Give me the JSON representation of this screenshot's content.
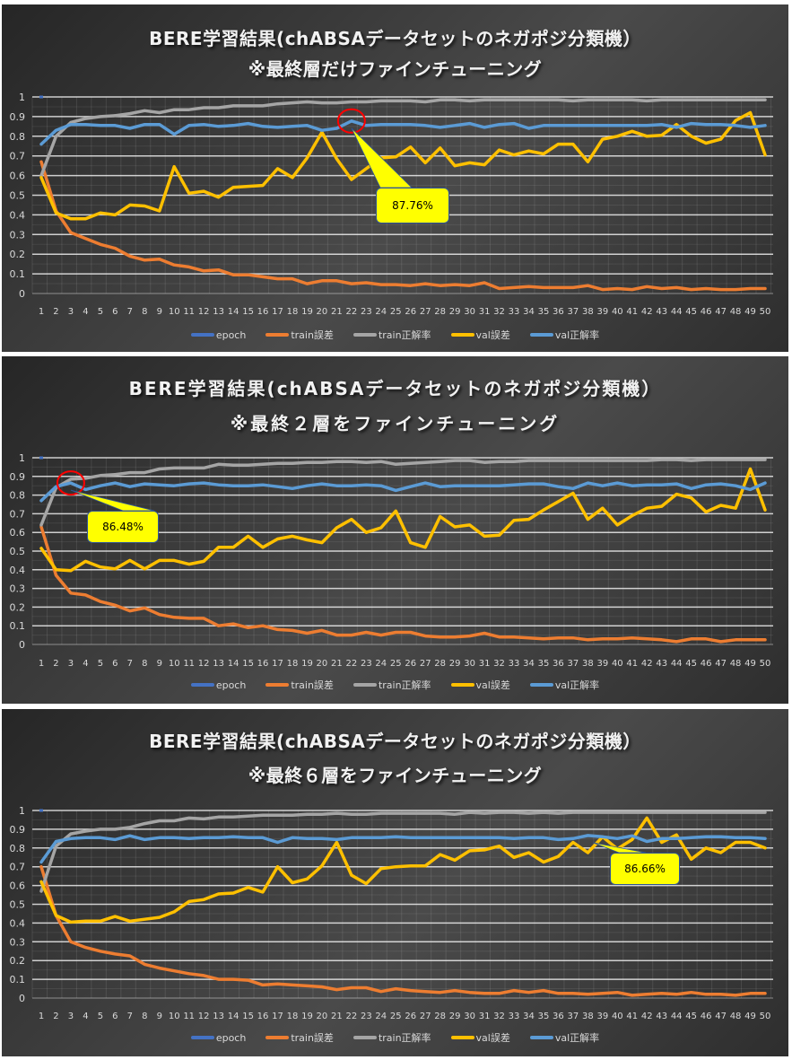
{
  "series_meta": [
    {
      "key": "epoch",
      "name": "epoch",
      "color": "#4472c4"
    },
    {
      "key": "train_loss",
      "name": "train誤差",
      "color": "#ed7d31"
    },
    {
      "key": "train_acc",
      "name": "train正解率",
      "color": "#a5a5a5"
    },
    {
      "key": "val_loss",
      "name": "val誤差",
      "color": "#ffc000"
    },
    {
      "key": "val_acc",
      "name": "val正解率",
      "color": "#5b9bd5"
    }
  ],
  "panels": [
    {
      "title_line1": "BERE学習結果(chABSAデータセットのネガポジ分類機）",
      "title_line2": "※最終層だけファインチューニング",
      "callout": "87.76%"
    },
    {
      "title_line1": "BERE学習結果(chABSAデータセットのネガポジ分類機）",
      "title_line2": "※最終２層をファインチューニング",
      "callout": "86.48%"
    },
    {
      "title_line1": "BERE学習結果(chABSAデータセットのネガポジ分類機）",
      "title_line2": "※最終６層をファインチューニング",
      "callout": "86.66%"
    }
  ],
  "chart_data": [
    {
      "type": "line",
      "title": "BERE学習結果(chABSAデータセットのネガポジ分類機） ※最終層だけファインチューニング",
      "xlabel": "",
      "ylabel": "",
      "ylim": [
        0,
        1
      ],
      "yticks": [
        0,
        0.1,
        0.2,
        0.3,
        0.4,
        0.5,
        0.6,
        0.7,
        0.8,
        0.9,
        1
      ],
      "grid": true,
      "legend_position": "bottom",
      "annotation": {
        "text": "87.76%",
        "epoch": 22,
        "value": 0.8776,
        "marker": "red-circle"
      },
      "x": [
        1,
        2,
        3,
        4,
        5,
        6,
        7,
        8,
        9,
        10,
        11,
        12,
        13,
        14,
        15,
        16,
        17,
        18,
        19,
        20,
        21,
        22,
        23,
        24,
        25,
        26,
        27,
        28,
        29,
        30,
        31,
        32,
        33,
        34,
        35,
        36,
        37,
        38,
        39,
        40,
        41,
        42,
        43,
        44,
        45,
        46,
        47,
        48,
        49,
        50
      ],
      "series": [
        {
          "name": "epoch",
          "values": [
            1
          ]
        },
        {
          "name": "train誤差",
          "values": [
            0.67,
            0.42,
            0.31,
            0.28,
            0.25,
            0.23,
            0.19,
            0.17,
            0.175,
            0.145,
            0.135,
            0.115,
            0.12,
            0.095,
            0.095,
            0.085,
            0.075,
            0.075,
            0.05,
            0.065,
            0.065,
            0.05,
            0.055,
            0.045,
            0.045,
            0.04,
            0.05,
            0.04,
            0.045,
            0.04,
            0.055,
            0.025,
            0.03,
            0.035,
            0.03,
            0.03,
            0.03,
            0.04,
            0.02,
            0.025,
            0.02,
            0.035,
            0.025,
            0.03,
            0.02,
            0.025,
            0.02,
            0.02,
            0.025,
            0.025
          ]
        },
        {
          "name": "train正解率",
          "values": [
            0.6,
            0.8,
            0.87,
            0.89,
            0.9,
            0.905,
            0.915,
            0.93,
            0.92,
            0.935,
            0.935,
            0.945,
            0.945,
            0.955,
            0.955,
            0.955,
            0.965,
            0.97,
            0.975,
            0.97,
            0.97,
            0.975,
            0.975,
            0.98,
            0.98,
            0.98,
            0.975,
            0.985,
            0.985,
            0.98,
            0.985,
            0.985,
            0.985,
            0.985,
            0.985,
            0.985,
            0.98,
            0.985,
            0.985,
            0.985,
            0.985,
            0.98,
            0.985,
            0.985,
            0.985,
            0.985,
            0.985,
            0.985,
            0.985,
            0.985
          ]
        },
        {
          "name": "val誤差",
          "values": [
            0.59,
            0.41,
            0.38,
            0.38,
            0.41,
            0.4,
            0.45,
            0.445,
            0.42,
            0.645,
            0.51,
            0.52,
            0.49,
            0.54,
            0.545,
            0.55,
            0.635,
            0.59,
            0.69,
            0.82,
            0.685,
            0.58,
            0.635,
            0.69,
            0.695,
            0.745,
            0.665,
            0.74,
            0.65,
            0.665,
            0.655,
            0.73,
            0.705,
            0.725,
            0.71,
            0.76,
            0.76,
            0.67,
            0.785,
            0.8,
            0.825,
            0.8,
            0.805,
            0.86,
            0.8,
            0.765,
            0.785,
            0.88,
            0.92,
            0.705
          ]
        },
        {
          "name": "val正解率",
          "values": [
            0.76,
            0.83,
            0.86,
            0.86,
            0.855,
            0.855,
            0.84,
            0.86,
            0.86,
            0.81,
            0.855,
            0.86,
            0.85,
            0.855,
            0.865,
            0.85,
            0.845,
            0.85,
            0.855,
            0.83,
            0.84,
            0.8776,
            0.855,
            0.86,
            0.86,
            0.86,
            0.855,
            0.845,
            0.855,
            0.865,
            0.845,
            0.86,
            0.865,
            0.84,
            0.855,
            0.855,
            0.855,
            0.855,
            0.855,
            0.855,
            0.855,
            0.855,
            0.86,
            0.845,
            0.865,
            0.86,
            0.86,
            0.855,
            0.845,
            0.855
          ]
        }
      ]
    },
    {
      "type": "line",
      "title": "BERE学習結果(chABSAデータセットのネガポジ分類機） ※最終２層をファインチューニング",
      "xlabel": "",
      "ylabel": "",
      "ylim": [
        0,
        1
      ],
      "yticks": [
        0,
        0.1,
        0.2,
        0.3,
        0.4,
        0.5,
        0.6,
        0.7,
        0.8,
        0.9,
        1
      ],
      "grid": true,
      "legend_position": "bottom",
      "annotation": {
        "text": "86.48%",
        "epoch": 3,
        "value": 0.8648,
        "marker": "red-circle"
      },
      "x": [
        1,
        2,
        3,
        4,
        5,
        6,
        7,
        8,
        9,
        10,
        11,
        12,
        13,
        14,
        15,
        16,
        17,
        18,
        19,
        20,
        21,
        22,
        23,
        24,
        25,
        26,
        27,
        28,
        29,
        30,
        31,
        32,
        33,
        34,
        35,
        36,
        37,
        38,
        39,
        40,
        41,
        42,
        43,
        44,
        45,
        46,
        47,
        48,
        49,
        50
      ],
      "series": [
        {
          "name": "epoch",
          "values": [
            1
          ]
        },
        {
          "name": "train誤差",
          "values": [
            0.63,
            0.37,
            0.275,
            0.265,
            0.23,
            0.21,
            0.18,
            0.195,
            0.16,
            0.145,
            0.14,
            0.14,
            0.1,
            0.11,
            0.09,
            0.1,
            0.08,
            0.075,
            0.06,
            0.075,
            0.05,
            0.05,
            0.065,
            0.05,
            0.065,
            0.065,
            0.045,
            0.04,
            0.04,
            0.045,
            0.06,
            0.04,
            0.04,
            0.035,
            0.03,
            0.035,
            0.035,
            0.025,
            0.03,
            0.03,
            0.035,
            0.03,
            0.025,
            0.015,
            0.03,
            0.03,
            0.015,
            0.025,
            0.025,
            0.025
          ]
        },
        {
          "name": "train正解率",
          "values": [
            0.64,
            0.84,
            0.885,
            0.89,
            0.905,
            0.91,
            0.92,
            0.92,
            0.94,
            0.945,
            0.945,
            0.945,
            0.965,
            0.96,
            0.96,
            0.965,
            0.97,
            0.97,
            0.975,
            0.975,
            0.98,
            0.98,
            0.975,
            0.98,
            0.965,
            0.97,
            0.975,
            0.98,
            0.985,
            0.985,
            0.975,
            0.98,
            0.98,
            0.985,
            0.985,
            0.985,
            0.985,
            0.985,
            0.985,
            0.985,
            0.985,
            0.985,
            0.99,
            0.99,
            0.985,
            0.99,
            0.99,
            0.99,
            0.99,
            0.99
          ]
        },
        {
          "name": "val誤差",
          "values": [
            0.515,
            0.4,
            0.395,
            0.445,
            0.415,
            0.405,
            0.45,
            0.405,
            0.45,
            0.45,
            0.43,
            0.445,
            0.52,
            0.52,
            0.58,
            0.52,
            0.565,
            0.58,
            0.56,
            0.545,
            0.625,
            0.67,
            0.6,
            0.625,
            0.715,
            0.545,
            0.52,
            0.685,
            0.63,
            0.64,
            0.58,
            0.585,
            0.665,
            0.67,
            0.72,
            0.765,
            0.81,
            0.67,
            0.73,
            0.64,
            0.69,
            0.73,
            0.74,
            0.805,
            0.785,
            0.71,
            0.745,
            0.73,
            0.94,
            0.72
          ]
        },
        {
          "name": "val正解率",
          "values": [
            0.77,
            0.845,
            0.8648,
            0.83,
            0.85,
            0.865,
            0.845,
            0.86,
            0.855,
            0.85,
            0.86,
            0.865,
            0.855,
            0.85,
            0.85,
            0.855,
            0.845,
            0.835,
            0.85,
            0.86,
            0.85,
            0.85,
            0.855,
            0.85,
            0.825,
            0.845,
            0.865,
            0.845,
            0.85,
            0.85,
            0.85,
            0.85,
            0.855,
            0.86,
            0.86,
            0.845,
            0.835,
            0.865,
            0.85,
            0.865,
            0.85,
            0.855,
            0.855,
            0.86,
            0.835,
            0.855,
            0.86,
            0.85,
            0.83,
            0.865
          ]
        }
      ]
    },
    {
      "type": "line",
      "title": "BERE学習結果(chABSAデータセットのネガポジ分類機） ※最終６層をファインチューニング",
      "xlabel": "",
      "ylabel": "",
      "ylim": [
        0,
        1
      ],
      "yticks": [
        0,
        0.1,
        0.2,
        0.3,
        0.4,
        0.5,
        0.6,
        0.7,
        0.8,
        0.9,
        1
      ],
      "grid": true,
      "legend_position": "bottom",
      "annotation": {
        "text": "86.66%",
        "epoch": 38,
        "value": 0.8666,
        "marker": "none"
      },
      "x": [
        1,
        2,
        3,
        4,
        5,
        6,
        7,
        8,
        9,
        10,
        11,
        12,
        13,
        14,
        15,
        16,
        17,
        18,
        19,
        20,
        21,
        22,
        23,
        24,
        25,
        26,
        27,
        28,
        29,
        30,
        31,
        32,
        33,
        34,
        35,
        36,
        37,
        38,
        39,
        40,
        41,
        42,
        43,
        44,
        45,
        46,
        47,
        48,
        49,
        50
      ],
      "series": [
        {
          "name": "epoch",
          "values": [
            1
          ]
        },
        {
          "name": "train誤差",
          "values": [
            0.7,
            0.44,
            0.3,
            0.27,
            0.25,
            0.235,
            0.225,
            0.18,
            0.16,
            0.145,
            0.13,
            0.12,
            0.1,
            0.1,
            0.095,
            0.07,
            0.075,
            0.07,
            0.065,
            0.06,
            0.045,
            0.055,
            0.055,
            0.035,
            0.05,
            0.04,
            0.035,
            0.03,
            0.04,
            0.03,
            0.025,
            0.025,
            0.04,
            0.03,
            0.04,
            0.025,
            0.025,
            0.02,
            0.025,
            0.03,
            0.015,
            0.02,
            0.025,
            0.02,
            0.03,
            0.02,
            0.02,
            0.015,
            0.025,
            0.025
          ]
        },
        {
          "name": "train正解率",
          "values": [
            0.57,
            0.81,
            0.875,
            0.89,
            0.9,
            0.9,
            0.91,
            0.93,
            0.945,
            0.945,
            0.96,
            0.955,
            0.965,
            0.965,
            0.97,
            0.975,
            0.975,
            0.975,
            0.98,
            0.98,
            0.985,
            0.98,
            0.98,
            0.985,
            0.985,
            0.985,
            0.985,
            0.985,
            0.98,
            0.99,
            0.985,
            0.99,
            0.99,
            0.985,
            0.99,
            0.985,
            0.99,
            0.99,
            0.99,
            0.99,
            0.99,
            0.99,
            0.99,
            0.99,
            0.99,
            0.99,
            0.99,
            0.99,
            0.99,
            0.99
          ]
        },
        {
          "name": "val誤差",
          "values": [
            0.62,
            0.44,
            0.405,
            0.41,
            0.41,
            0.435,
            0.41,
            0.42,
            0.43,
            0.46,
            0.515,
            0.525,
            0.555,
            0.56,
            0.59,
            0.565,
            0.7,
            0.615,
            0.635,
            0.705,
            0.83,
            0.655,
            0.61,
            0.69,
            0.7,
            0.705,
            0.705,
            0.765,
            0.735,
            0.785,
            0.79,
            0.81,
            0.75,
            0.775,
            0.725,
            0.755,
            0.83,
            0.775,
            0.86,
            0.795,
            0.845,
            0.96,
            0.83,
            0.87,
            0.74,
            0.8,
            0.775,
            0.83,
            0.83,
            0.8
          ]
        },
        {
          "name": "val正解率",
          "values": [
            0.725,
            0.835,
            0.85,
            0.855,
            0.855,
            0.845,
            0.865,
            0.845,
            0.855,
            0.855,
            0.85,
            0.855,
            0.855,
            0.86,
            0.855,
            0.855,
            0.83,
            0.855,
            0.85,
            0.85,
            0.845,
            0.855,
            0.855,
            0.855,
            0.86,
            0.855,
            0.855,
            0.855,
            0.855,
            0.855,
            0.855,
            0.855,
            0.85,
            0.855,
            0.855,
            0.845,
            0.85,
            0.8666,
            0.86,
            0.85,
            0.865,
            0.835,
            0.85,
            0.85,
            0.855,
            0.86,
            0.86,
            0.855,
            0.855,
            0.85
          ]
        }
      ]
    }
  ]
}
